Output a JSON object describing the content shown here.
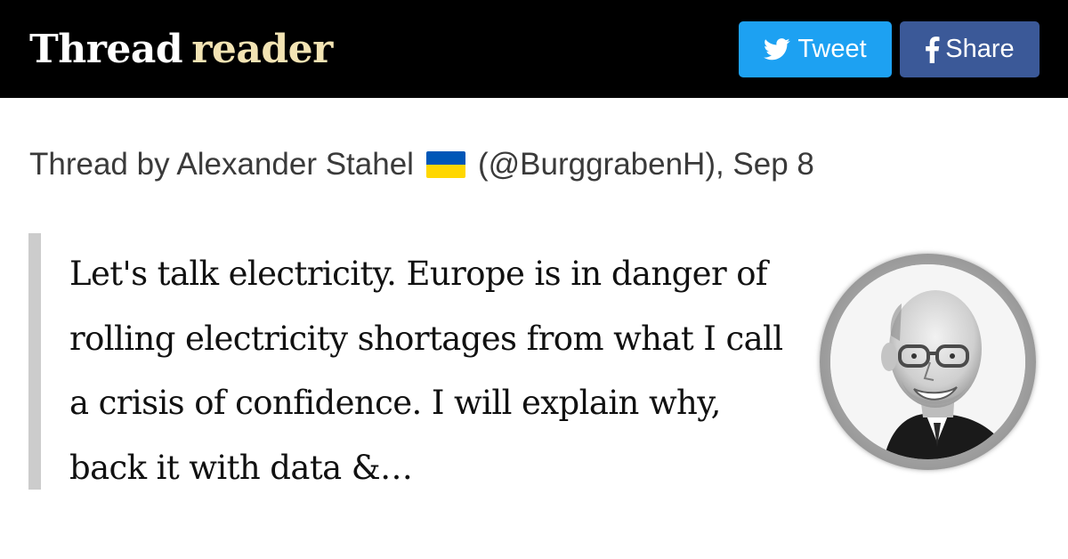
{
  "header": {
    "logo_part1": "Thread",
    "logo_part2": "reader",
    "tweet_label": "Tweet",
    "share_label": "Share"
  },
  "thread": {
    "byline_prefix": "Thread by Alexander Stahel",
    "byline_suffix": "(@BurggrabenH), Sep 8",
    "quote": "Let's talk electricity. Europe is in danger of rolling electricity shortages from what I call a crisis of confidence. I will explain why, back it with data &…"
  },
  "icons": [
    "twitter-bird-icon",
    "facebook-f-icon",
    "ukraine-flag-icon"
  ],
  "colors": {
    "topbar": "#000000",
    "logo_reader": "#f2e3b3",
    "tweet_button": "#1da1f2",
    "share_button": "#3b5998",
    "quote_bar": "#cccccc"
  }
}
